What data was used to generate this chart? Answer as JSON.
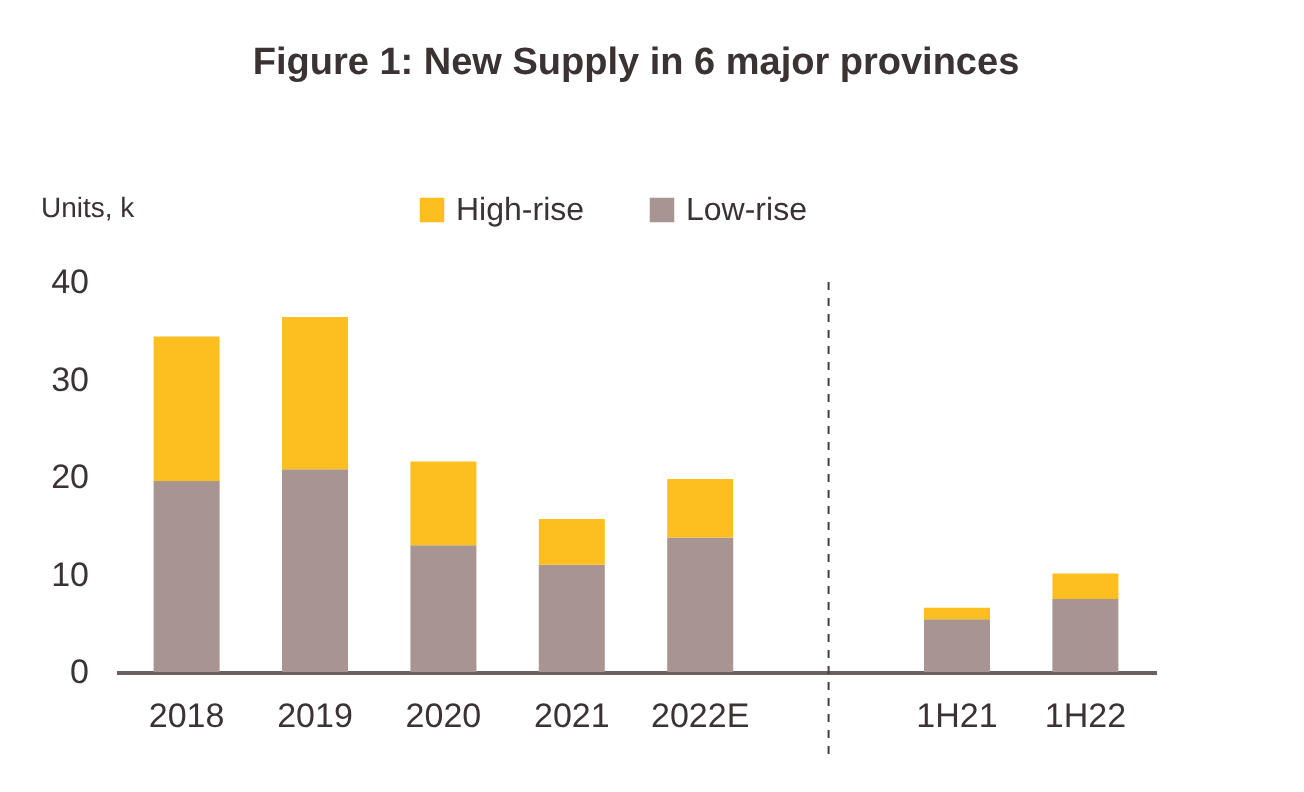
{
  "chart_data": {
    "type": "bar",
    "title": "Figure 1: New Supply in 6 major provinces",
    "ylabel": "Units, k",
    "categories": [
      "2018",
      "2019",
      "2020",
      "2021",
      "2022E",
      null,
      "1H21",
      "1H22"
    ],
    "stacked": true,
    "series": [
      {
        "name": "Low-rise",
        "color": "#a89591",
        "values": [
          19.6,
          20.8,
          13.0,
          11.0,
          13.8,
          null,
          5.4,
          7.5
        ]
      },
      {
        "name": "High-rise",
        "color": "#fdbe20",
        "values": [
          14.8,
          15.6,
          8.6,
          4.7,
          6.0,
          null,
          1.2,
          2.6
        ]
      }
    ],
    "ylim": [
      0,
      40
    ],
    "yticks": [
      0,
      10,
      20,
      30,
      40
    ],
    "ref_lines": [
      {
        "axis": "x",
        "value": null,
        "line_style": "dashed",
        "color": "#4a3f3f"
      }
    ],
    "legend": "top"
  }
}
